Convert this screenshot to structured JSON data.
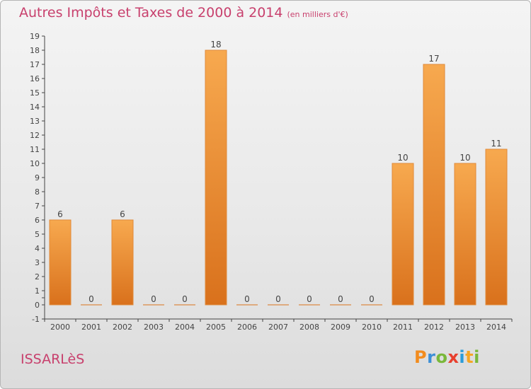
{
  "header": {
    "title": "Autres Impôts et Taxes de 2000 à 2014",
    "subtitle": "(en milliers d'€)"
  },
  "footer": {
    "commune": "ISSARLèS",
    "logo": "Proxiti"
  },
  "colors": {
    "bar_top": "#f7a94f",
    "bar_bottom": "#d9711c",
    "title": "#c8406d"
  },
  "chart_data": {
    "type": "bar",
    "title": "Autres Impôts et Taxes de 2000 à 2014",
    "subtitle": "(en milliers d'€)",
    "categories": [
      "2000",
      "2001",
      "2002",
      "2003",
      "2004",
      "2005",
      "2006",
      "2007",
      "2008",
      "2009",
      "2010",
      "2011",
      "2012",
      "2013",
      "2014"
    ],
    "values": [
      6,
      0,
      6,
      0,
      0,
      18,
      0,
      0,
      0,
      0,
      0,
      10,
      17,
      10,
      11
    ],
    "ylim": [
      -1,
      19
    ],
    "yticks": [
      "-1",
      "0",
      "",
      "1",
      "2",
      "3",
      "4",
      "5",
      "6",
      "7",
      "8",
      "9",
      "10",
      "11",
      "12",
      "13",
      "14",
      "15",
      "16",
      "17",
      "18",
      "19"
    ],
    "grid": false
  }
}
